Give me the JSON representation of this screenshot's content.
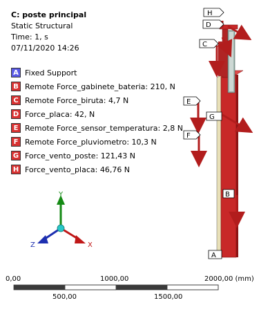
{
  "header": {
    "title": "C: poste principal",
    "analysis": "Static Structural",
    "time": "Time: 1, s",
    "date": "07/11/2020 14:26"
  },
  "legend": [
    {
      "letter": "A",
      "label": "Fixed Support",
      "color": "#5a5ae6"
    },
    {
      "letter": "B",
      "label": "Remote Force_gabinete_bateria: 210, N",
      "color": "#d93232"
    },
    {
      "letter": "C",
      "label": "Remote Force_biruta: 4,7 N",
      "color": "#d93232"
    },
    {
      "letter": "D",
      "label": "Force_placa: 42, N",
      "color": "#d93232"
    },
    {
      "letter": "E",
      "label": "Remote Force_sensor_temperatura: 2,8 N",
      "color": "#d93232"
    },
    {
      "letter": "F",
      "label": "Remote Force_pluviometro: 10,3 N",
      "color": "#d93232"
    },
    {
      "letter": "G",
      "label": "Force_vento_poste: 121,43 N",
      "color": "#d93232"
    },
    {
      "letter": "H",
      "label": "Force_vento_placa: 46,76 N",
      "color": "#d93232"
    }
  ],
  "axes": {
    "x": "X",
    "y": "Y",
    "z": "Z"
  },
  "scale": {
    "top_labels": [
      "0,00",
      "1000,00",
      "2000,00 (mm)"
    ],
    "bottom_labels": [
      "500,00",
      "1500,00"
    ]
  },
  "callouts": {
    "a": "A",
    "b": "B",
    "c": "C",
    "d": "D",
    "e": "E",
    "f": "F",
    "g": "G",
    "h": "H"
  }
}
